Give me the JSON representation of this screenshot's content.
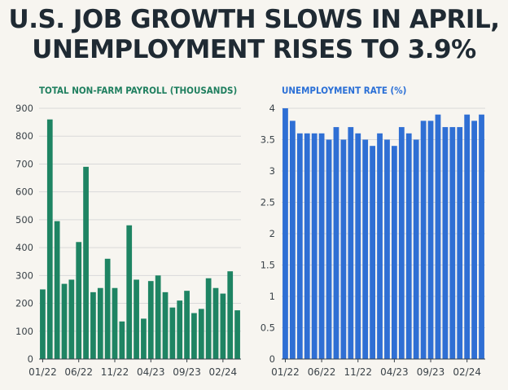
{
  "title": {
    "line1": "U.S. JOB GROWTH SLOWS IN APRIL,",
    "line2": "UNEMPLOYMENT RISES TO 3.9%"
  },
  "colors": {
    "payroll": "#1e8463",
    "unemployment": "#2f6fd4",
    "title": "#1f2a33"
  },
  "chart_data": [
    {
      "type": "bar",
      "title": "TOTAL NON-FARM PAYROLL (THOUSANDS)",
      "xlabel": "",
      "ylabel": "",
      "ylim": [
        0,
        900
      ],
      "yticks": [
        "0",
        "100",
        "200",
        "300",
        "400",
        "500",
        "600",
        "700",
        "800",
        "900"
      ],
      "xticks": [
        "01/22",
        "06/22",
        "11/22",
        "04/23",
        "09/23",
        "02/24"
      ],
      "categories": [
        "01/22",
        "02/22",
        "03/22",
        "04/22",
        "05/22",
        "06/22",
        "07/22",
        "08/22",
        "09/22",
        "10/22",
        "11/22",
        "12/22",
        "01/23",
        "02/23",
        "03/23",
        "04/23",
        "05/23",
        "06/23",
        "07/23",
        "08/23",
        "09/23",
        "10/23",
        "11/23",
        "12/23",
        "01/24",
        "02/24",
        "03/24",
        "04/24"
      ],
      "values": [
        250,
        860,
        495,
        270,
        285,
        420,
        690,
        240,
        255,
        360,
        255,
        135,
        480,
        285,
        145,
        280,
        300,
        240,
        185,
        210,
        245,
        165,
        180,
        290,
        255,
        235,
        315,
        175
      ],
      "grid": true,
      "legend": "none"
    },
    {
      "type": "bar",
      "title": "UNEMPLOYMENT RATE (%)",
      "xlabel": "",
      "ylabel": "",
      "ylim": [
        0,
        4
      ],
      "yticks": [
        "0",
        "0.5",
        "1",
        "1.5",
        "2",
        "2.5",
        "3",
        "3.5",
        "4"
      ],
      "xticks": [
        "01/22",
        "06/22",
        "11/22",
        "04/23",
        "09/23",
        "02/24"
      ],
      "categories": [
        "01/22",
        "02/22",
        "03/22",
        "04/22",
        "05/22",
        "06/22",
        "07/22",
        "08/22",
        "09/22",
        "10/22",
        "11/22",
        "12/22",
        "01/23",
        "02/23",
        "03/23",
        "04/23",
        "05/23",
        "06/23",
        "07/23",
        "08/23",
        "09/23",
        "10/23",
        "11/23",
        "12/23",
        "01/24",
        "02/24",
        "03/24",
        "04/24"
      ],
      "values": [
        4.0,
        3.8,
        3.6,
        3.6,
        3.6,
        3.6,
        3.5,
        3.7,
        3.5,
        3.7,
        3.6,
        3.5,
        3.4,
        3.6,
        3.5,
        3.4,
        3.7,
        3.6,
        3.5,
        3.8,
        3.8,
        3.9,
        3.7,
        3.7,
        3.7,
        3.9,
        3.8,
        3.9
      ],
      "grid": true,
      "legend": "none"
    }
  ]
}
